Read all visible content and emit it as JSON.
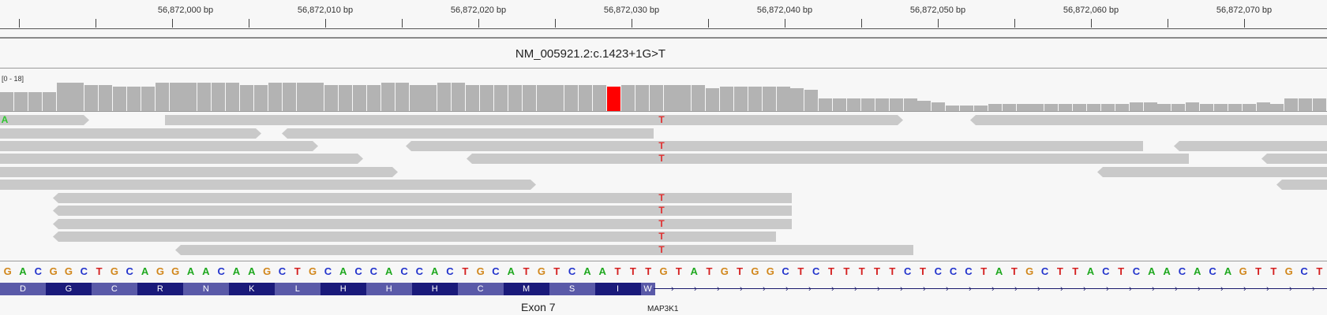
{
  "ruler": {
    "labels": [
      "56,872,000 bp",
      "56,872,010 bp",
      "56,872,020 bp",
      "56,872,030 bp",
      "56,872,040 bp",
      "56,872,050 bp",
      "56,872,060 bp",
      "56,872,070 bp"
    ]
  },
  "variant_title": "NM_005921.2:c.1423+1G>T",
  "coverage": {
    "range_label": "[0 - 18]",
    "max": 18,
    "depths": [
      11,
      11,
      11,
      11,
      16,
      16,
      15,
      15,
      14,
      14,
      14,
      16,
      16,
      16,
      16,
      16,
      16,
      15,
      15,
      16,
      16,
      16,
      16,
      15,
      15,
      15,
      15,
      16,
      16,
      15,
      15,
      16,
      16,
      15,
      15,
      15,
      15,
      15,
      15,
      15,
      15,
      15,
      15,
      14,
      15,
      15,
      15,
      15,
      15,
      15,
      13,
      14,
      14,
      14,
      14,
      14,
      13,
      12,
      7,
      7,
      7,
      7,
      7,
      7,
      7,
      6,
      5,
      3,
      3,
      3,
      4,
      4,
      4,
      4,
      4,
      4,
      4,
      4,
      4,
      4,
      5,
      5,
      4,
      4,
      5,
      4,
      4,
      4,
      4,
      5,
      4,
      7,
      7,
      7
    ],
    "mismatch_index": 43,
    "mismatch_color": "#ff0000",
    "bar_color": "#b3b3b3"
  },
  "reads": {
    "mismatch_base": "T",
    "first_base": "A",
    "read_color": "#c9c9c9",
    "mismatch_color": "#e03030",
    "first_base_color": "#2fc52f"
  },
  "sequence": {
    "bases": [
      "G",
      "A",
      "C",
      "G",
      "G",
      "C",
      "T",
      "G",
      "C",
      "A",
      "G",
      "G",
      "A",
      "A",
      "C",
      "A",
      "A",
      "G",
      "C",
      "T",
      "G",
      "C",
      "A",
      "C",
      "C",
      "A",
      "C",
      "C",
      "A",
      "C",
      "T",
      "G",
      "C",
      "A",
      "T",
      "G",
      "T",
      "C",
      "A",
      "A",
      "T",
      "T",
      "T",
      "G",
      "T",
      "A",
      "T",
      "G",
      "T",
      "G",
      "G",
      "C",
      "T",
      "C",
      "T",
      "T",
      "T",
      "T",
      "T",
      "C",
      "T",
      "C",
      "C",
      "C",
      "T",
      "A",
      "T",
      "G",
      "C",
      "T",
      "T",
      "A",
      "C",
      "T",
      "C",
      "A",
      "A",
      "C",
      "A",
      "C",
      "A",
      "G",
      "T",
      "T",
      "G",
      "C",
      "T"
    ],
    "colors": {
      "A": "#1fa81f",
      "C": "#2233cc",
      "G": "#d1861a",
      "T": "#d42020"
    }
  },
  "aminos": {
    "list": [
      "D",
      "G",
      "C",
      "R",
      "N",
      "K",
      "L",
      "H",
      "H",
      "H",
      "C",
      "M",
      "S",
      "I",
      "W"
    ],
    "colors": [
      "#5a5aa8",
      "#1a1a7a"
    ]
  },
  "annotation": {
    "exon_label": "Exon 7",
    "gene_label": "MAP3K1",
    "arrow_glyph": "›"
  }
}
